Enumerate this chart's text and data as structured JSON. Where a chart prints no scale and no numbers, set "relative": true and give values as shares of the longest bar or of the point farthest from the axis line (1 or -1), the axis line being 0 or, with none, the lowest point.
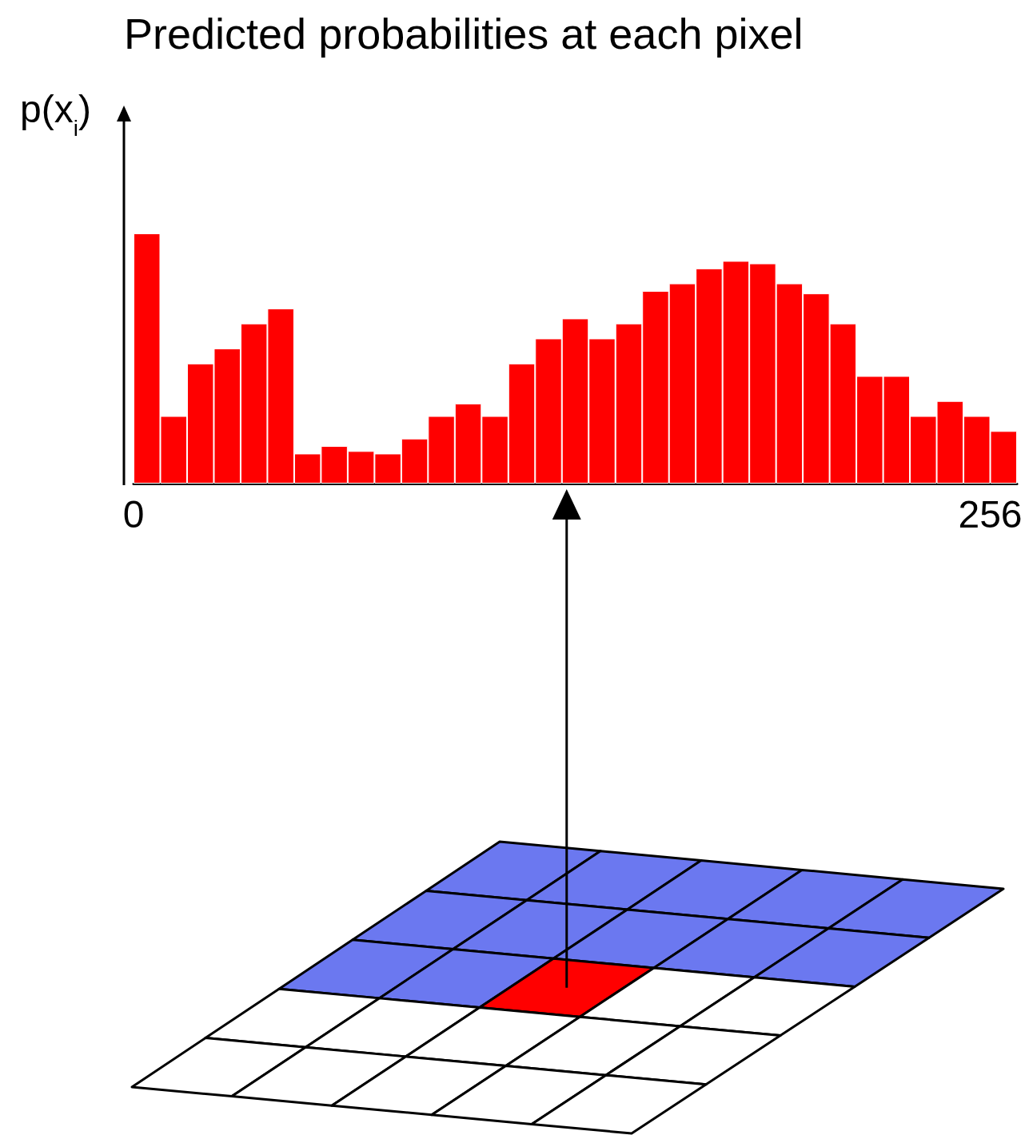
{
  "chart_data": {
    "type": "bar",
    "title": "Predicted probabilities at each pixel",
    "ylabel": "p(x$_{i}$)",
    "relative": true,
    "color": "#ff0000",
    "x": [
      4,
      12,
      20,
      28,
      36,
      44,
      52,
      60,
      68,
      76,
      84,
      92,
      100,
      108,
      116,
      124,
      132,
      140,
      148,
      156,
      164,
      172,
      180,
      188,
      196,
      204,
      212,
      220,
      228,
      236,
      244,
      252,
      260
    ],
    "values": [
      1,
      0.27,
      0.48,
      0.54,
      0.64,
      0.7,
      0.12,
      0.15,
      0.13,
      0.12,
      0.18,
      0.27,
      0.32,
      0.27,
      0.48,
      0.58,
      0.66,
      0.58,
      0.64,
      0.77,
      0.8,
      0.86,
      0.89,
      0.88,
      0.8,
      0.76,
      0.64,
      0.43,
      0.43,
      0.27,
      0.33,
      0.27,
      0.21
    ],
    "xlim": [
      0,
      264
    ],
    "xticks": [
      0,
      256
    ],
    "grid": false
  }
}
